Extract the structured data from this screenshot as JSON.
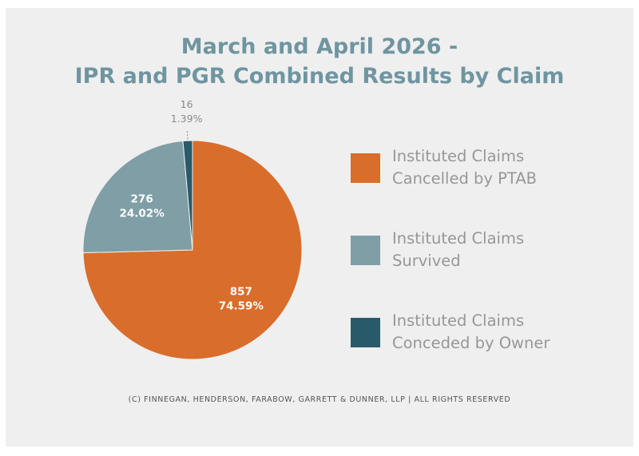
{
  "chart_data": {
    "type": "pie",
    "title_lines": [
      "March and April 2026 -",
      "IPR and PGR Combined Results by Claim"
    ],
    "slices": [
      {
        "label": "Instituted Claims Cancelled by PTAB",
        "legend_lines": [
          "Instituted Claims",
          "Cancelled by PTAB"
        ],
        "value": 857,
        "percent": "74.59%",
        "color": "#d96d2b"
      },
      {
        "label": "Instituted Claims Survived",
        "legend_lines": [
          "Instituted Claims",
          "Survived"
        ],
        "value": 276,
        "percent": "24.02%",
        "color": "#7f9ea6"
      },
      {
        "label": "Instituted Claims Conceded by Owner",
        "legend_lines": [
          "Instituted Claims",
          "Conceded by Owner"
        ],
        "value": 16,
        "percent": "1.39%",
        "color": "#295a6a"
      }
    ],
    "legend_position": "right"
  },
  "footer": "(C) FINNEGAN, HENDERSON, FARABOW, GARRETT & DUNNER, LLP | ALL RIGHTS RESERVED",
  "colors": {
    "background": "#efefef",
    "title": "#6f95a0",
    "legend_text": "#979797",
    "footer_text": "#555555"
  }
}
